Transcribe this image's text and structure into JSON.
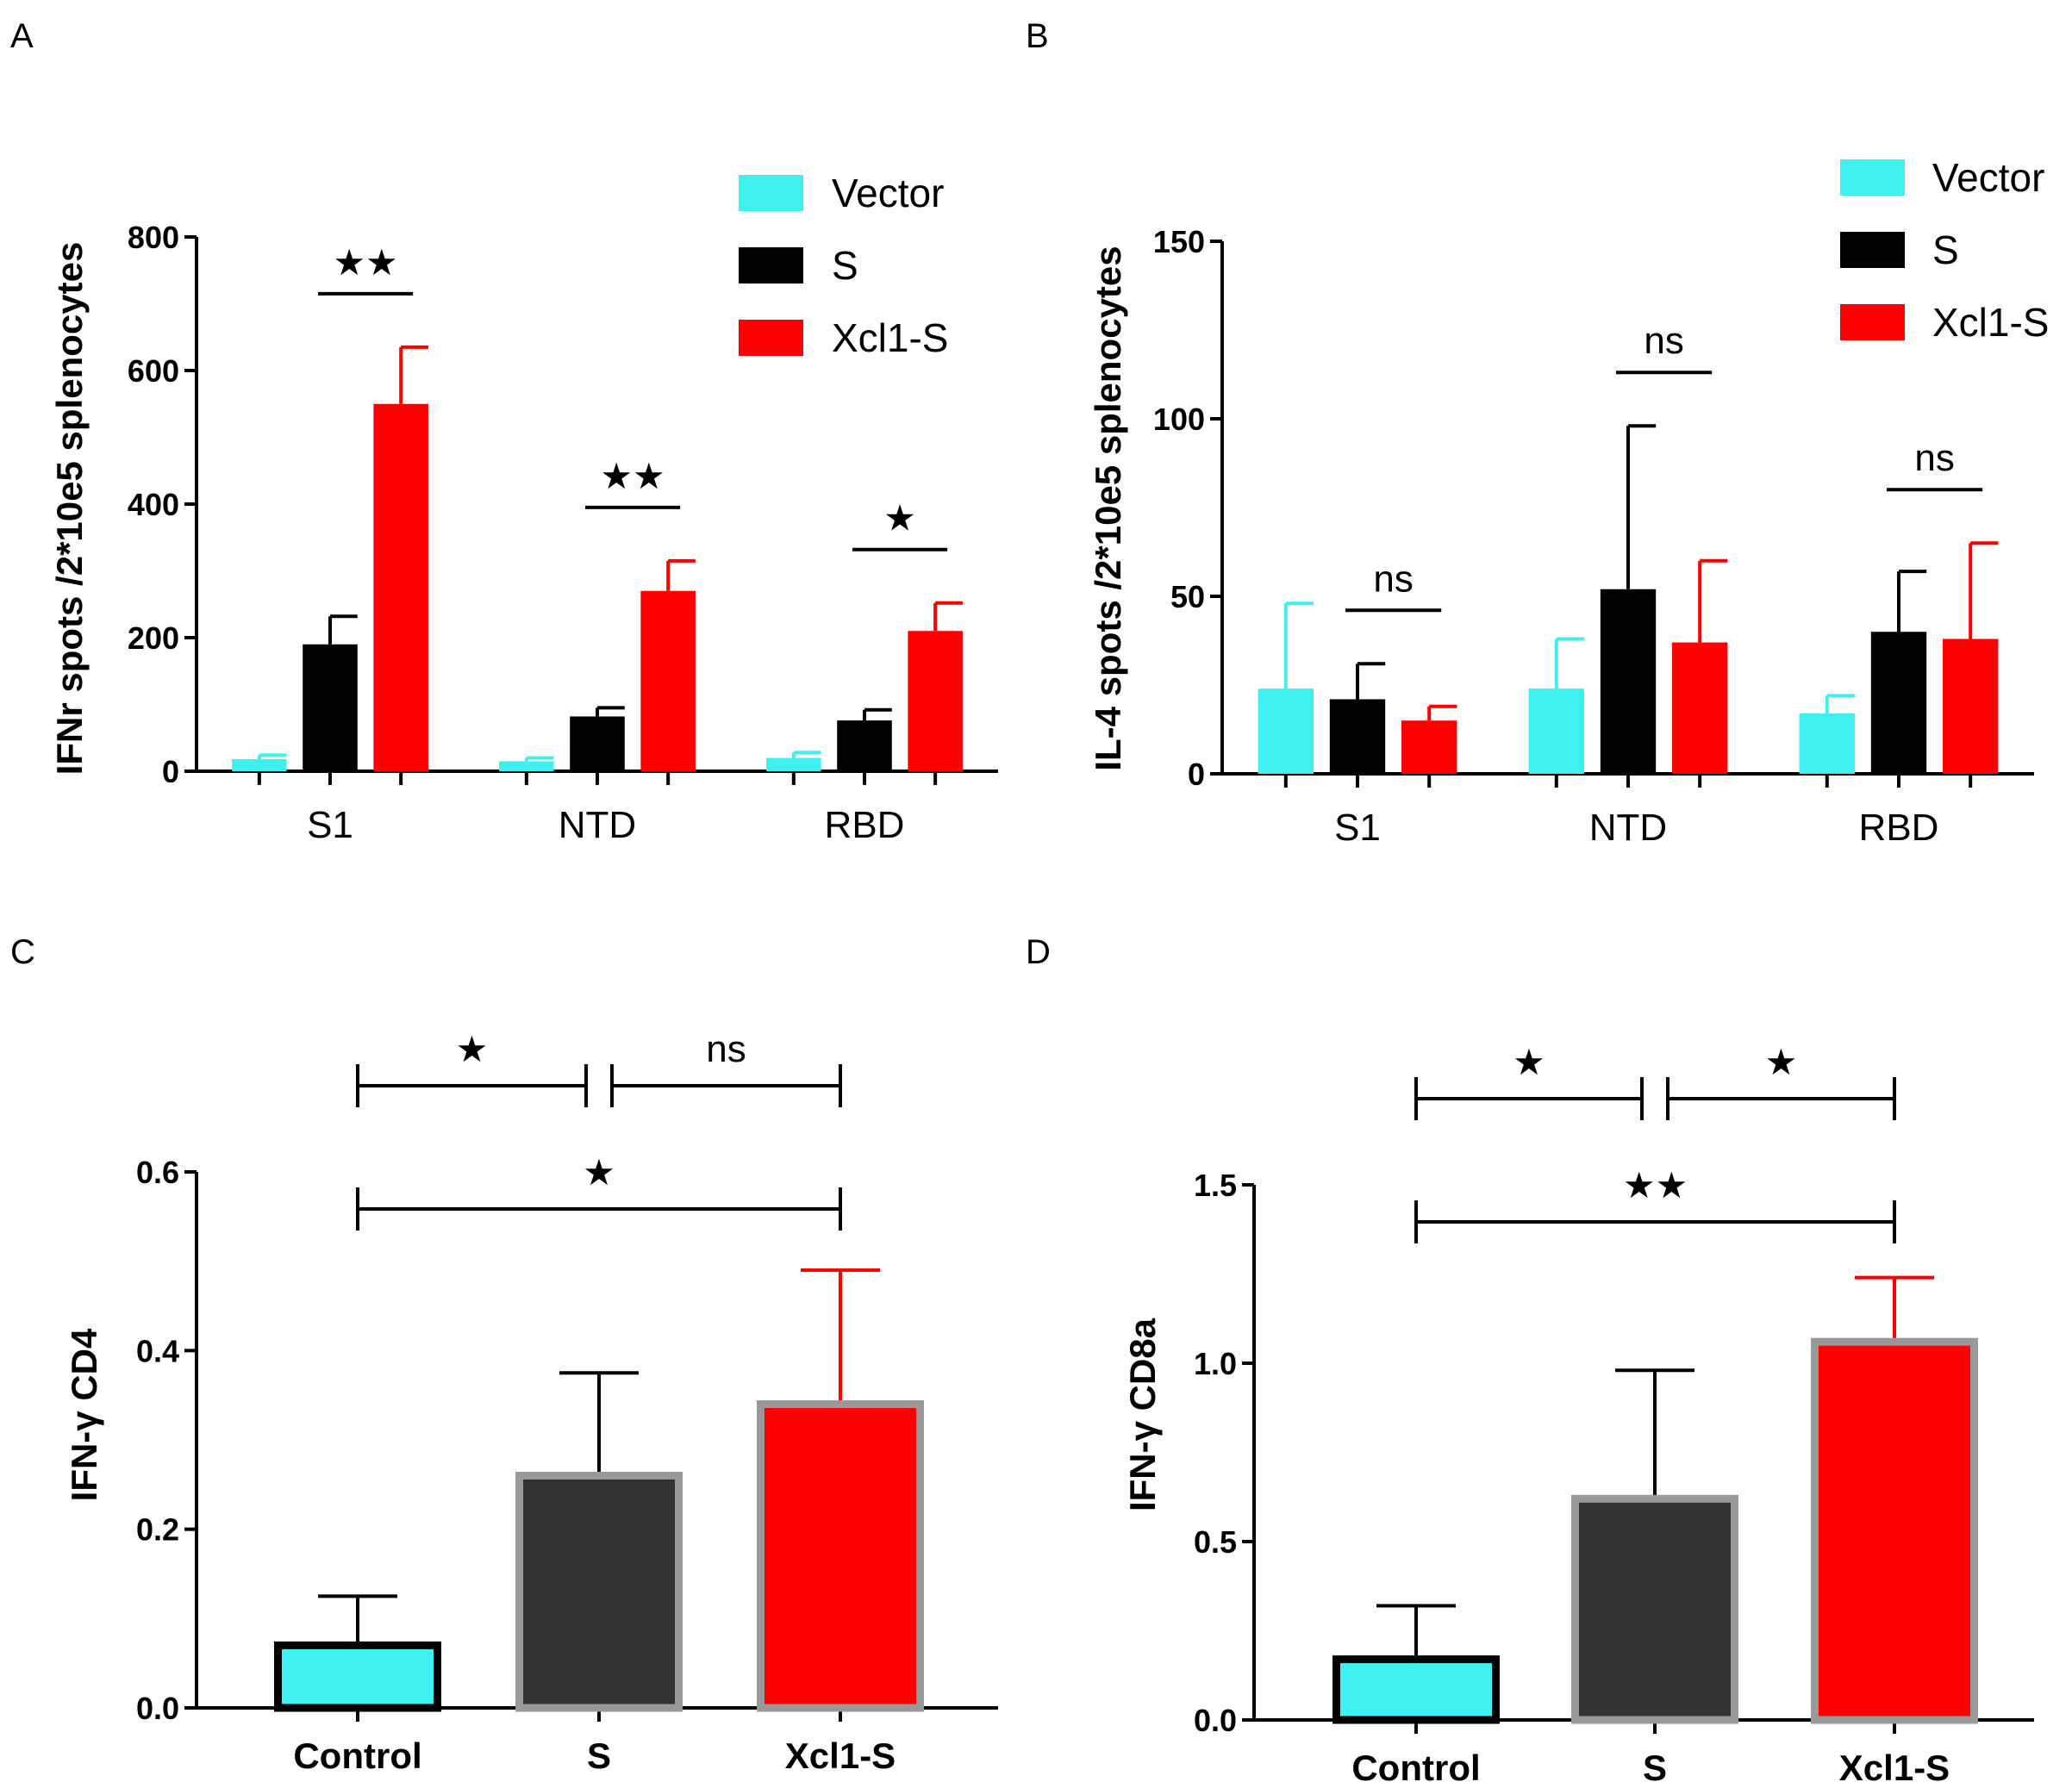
{
  "colors": {
    "vector": "#3ef0f0",
    "s": "#000000",
    "xcl1": "#ff0000",
    "s_dark": "#333333",
    "frame": "#999999"
  },
  "chart_data": [
    {
      "panel": "A",
      "type": "bar",
      "ylabel": "IFNr spots /2*10e5  splenocytes",
      "ylim": [
        0,
        800
      ],
      "yticks": [
        0,
        200,
        400,
        600,
        800
      ],
      "categories": [
        "S1",
        "NTD",
        "RBD"
      ],
      "series": [
        {
          "name": "Vector",
          "values": [
            18,
            15,
            20
          ],
          "errors": [
            6,
            5,
            8
          ]
        },
        {
          "name": "S",
          "values": [
            190,
            82,
            76
          ],
          "errors": [
            42,
            13,
            16
          ]
        },
        {
          "name": "Xcl1-S",
          "values": [
            550,
            270,
            210
          ],
          "errors": [
            85,
            45,
            42
          ]
        }
      ],
      "legend": [
        "Vector",
        "S",
        "Xcl1-S"
      ],
      "significance": [
        {
          "label": "★★",
          "category": "S1"
        },
        {
          "label": "★★",
          "category": "NTD"
        },
        {
          "label": "★",
          "category": "RBD"
        }
      ]
    },
    {
      "panel": "B",
      "type": "bar",
      "ylabel": "IL-4 spots /2*10e5  splenocytes",
      "ylim": [
        0,
        150
      ],
      "yticks": [
        0,
        50,
        100,
        150
      ],
      "categories": [
        "S1",
        "NTD",
        "RBD"
      ],
      "series": [
        {
          "name": "Vector",
          "values": [
            24,
            24,
            17
          ],
          "errors": [
            24,
            14,
            5
          ]
        },
        {
          "name": "S",
          "values": [
            21,
            52,
            40
          ],
          "errors": [
            10,
            46,
            17
          ]
        },
        {
          "name": "Xcl1-S",
          "values": [
            15,
            37,
            38
          ],
          "errors": [
            4,
            23,
            27
          ]
        }
      ],
      "legend": [
        "Vector",
        "S",
        "Xcl1-S"
      ],
      "significance": [
        {
          "label": "ns",
          "category": "S1"
        },
        {
          "label": "ns",
          "category": "NTD"
        },
        {
          "label": "ns",
          "category": "RBD"
        }
      ]
    },
    {
      "panel": "C",
      "type": "bar",
      "ylabel": "IFN-γ CD4",
      "ylim": [
        0,
        0.6
      ],
      "yticks": [
        "0.0",
        "0.2",
        "0.4",
        "0.6"
      ],
      "categories": [
        "Control",
        "S",
        "Xcl1-S"
      ],
      "values": [
        0.07,
        0.26,
        0.34
      ],
      "errors": [
        0.055,
        0.115,
        0.15
      ],
      "significance": [
        {
          "label": "★",
          "from": "Control",
          "to": "S"
        },
        {
          "label": "ns",
          "from": "S",
          "to": "Xcl1-S"
        },
        {
          "label": "★",
          "from": "Control",
          "to": "Xcl1-S"
        }
      ]
    },
    {
      "panel": "D",
      "type": "bar",
      "ylabel": "IFN-γ CD8a",
      "ylim": [
        0,
        1.5
      ],
      "yticks": [
        "0.0",
        "0.5",
        "1.0",
        "1.5"
      ],
      "categories": [
        "Control",
        "S",
        "Xcl1-S"
      ],
      "values": [
        0.17,
        0.62,
        1.06
      ],
      "errors": [
        0.15,
        0.36,
        0.18
      ],
      "significance": [
        {
          "label": "★",
          "from": "Control",
          "to": "S"
        },
        {
          "label": "★",
          "from": "S",
          "to": "Xcl1-S"
        },
        {
          "label": "★★",
          "from": "Control",
          "to": "Xcl1-S"
        }
      ]
    }
  ]
}
